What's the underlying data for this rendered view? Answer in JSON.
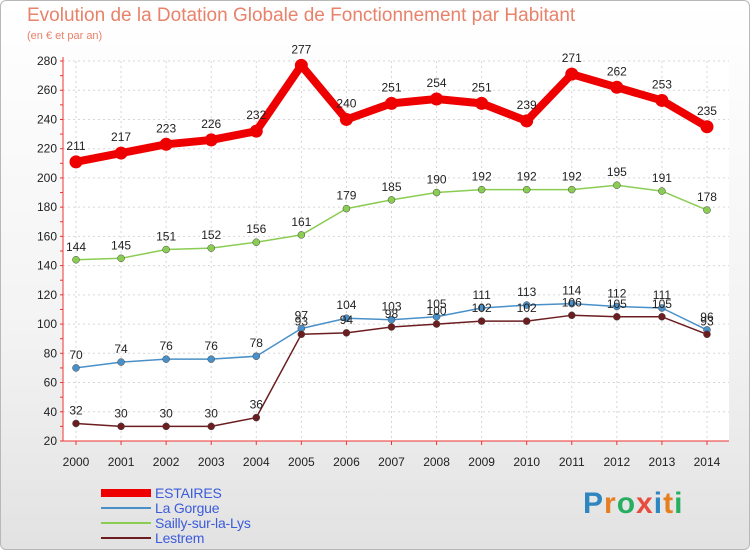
{
  "title": "Evolution de la Dotation Globale de Fonctionnement par Habitant",
  "subtitle": "(en € et par an)",
  "logo": {
    "text": "Proxiti"
  },
  "chart_data": {
    "type": "line",
    "title": "Evolution de la Dotation Globale de Fonctionnement par Habitant",
    "ylabel": "(en € et par an)",
    "xlabel": "",
    "ylim": [
      20,
      280
    ],
    "yticks": [
      20,
      40,
      60,
      80,
      100,
      120,
      140,
      160,
      180,
      200,
      220,
      240,
      260,
      280
    ],
    "categories": [
      "2000",
      "2001",
      "2002",
      "2003",
      "2004",
      "2005",
      "2006",
      "2007",
      "2008",
      "2009",
      "2010",
      "2011",
      "2012",
      "2013",
      "2014"
    ],
    "grid": true,
    "series": [
      {
        "name": "ESTAIRES",
        "color": "#ee0000",
        "values": [
          211,
          217,
          223,
          226,
          232,
          277,
          240,
          251,
          254,
          251,
          239,
          271,
          262,
          253,
          235
        ]
      },
      {
        "name": "La Gorgue",
        "color": "#4a90c8",
        "values": [
          70,
          74,
          76,
          76,
          78,
          97,
          104,
          103,
          105,
          111,
          113,
          114,
          112,
          111,
          96
        ]
      },
      {
        "name": "Sailly-sur-la-Lys",
        "color": "#8acd52",
        "values": [
          144,
          145,
          151,
          152,
          156,
          161,
          179,
          185,
          190,
          192,
          192,
          192,
          195,
          191,
          178
        ]
      },
      {
        "name": "Lestrem",
        "color": "#6b1d20",
        "values": [
          32,
          30,
          30,
          30,
          36,
          93,
          94,
          98,
          100,
          102,
          102,
          106,
          105,
          105,
          93
        ]
      }
    ]
  }
}
